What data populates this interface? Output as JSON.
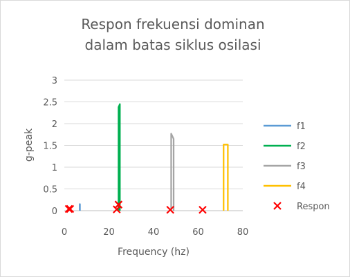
{
  "chart_data": {
    "type": "line",
    "title_lines": [
      "Respon frekuensi dominan",
      "dalam batas siklus osilasi"
    ],
    "xlabel": "Frequency (hz)",
    "ylabel": "g-peak",
    "xlim": [
      0,
      80
    ],
    "ylim": [
      0,
      3
    ],
    "xticks": [
      0,
      20,
      40,
      60,
      80
    ],
    "yticks": [
      0,
      0.5,
      1,
      1.5,
      2,
      2.5,
      3
    ],
    "ytick_labels": [
      "0",
      "0.5",
      "1",
      "1.5",
      "2",
      "2.5",
      "3"
    ],
    "grid": "horizontal",
    "legend_position": "right",
    "series": [
      {
        "name": "f1",
        "color": "#5B9BD5",
        "kind": "line",
        "x": [
          6.9,
          6.9,
          7.0,
          7.0
        ],
        "y": [
          0,
          0.15,
          0.15,
          0
        ]
      },
      {
        "name": "f2",
        "color": "#00B050",
        "kind": "line",
        "x": [
          24.3,
          24.3,
          24.9,
          24.9
        ],
        "y": [
          0,
          2.38,
          2.45,
          0
        ]
      },
      {
        "name": "f3",
        "color": "#A5A5A5",
        "kind": "line",
        "x": [
          47.9,
          47.9,
          49.0,
          49.0
        ],
        "y": [
          0,
          1.77,
          1.65,
          0
        ]
      },
      {
        "name": "f4",
        "color": "#FFC000",
        "kind": "line",
        "x": [
          71.4,
          71.4,
          73.3,
          73.3
        ],
        "y": [
          0,
          1.52,
          1.52,
          0
        ]
      },
      {
        "name": "Respon",
        "color": "#FF0000",
        "kind": "marker",
        "x": [
          2.0,
          2.6,
          23.5,
          24.3,
          47.5,
          62.0
        ],
        "y": [
          0.04,
          0.04,
          0.03,
          0.14,
          0.02,
          0.02
        ]
      }
    ]
  }
}
